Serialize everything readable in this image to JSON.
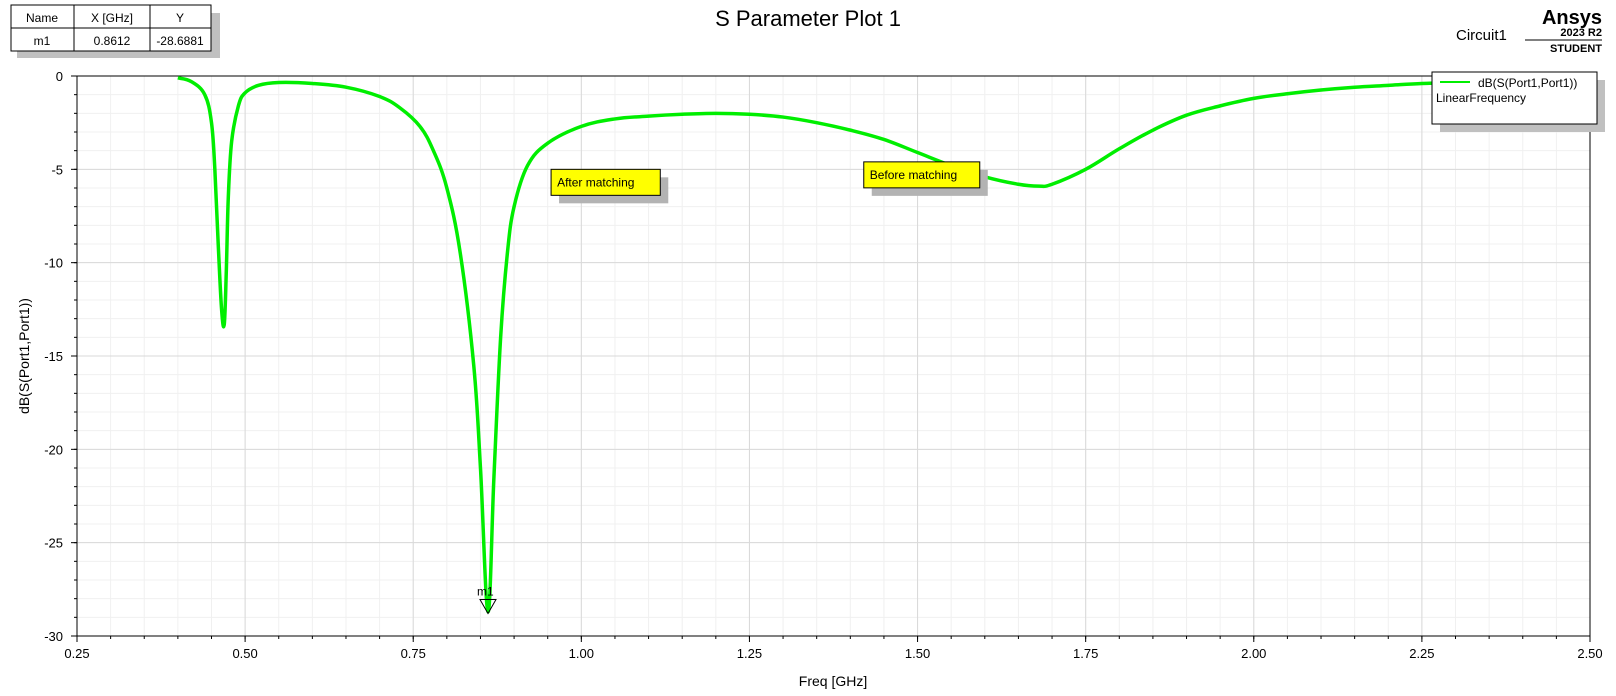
{
  "title": "S Parameter Plot 1",
  "circuit_label": "Circuit1",
  "brand": {
    "name": "Ansys",
    "version": "2023 R2",
    "edition": "STUDENT"
  },
  "marker_table": {
    "headers": [
      "Name",
      "X [GHz]",
      "Y"
    ],
    "rows": [
      [
        "m1",
        "0.8612",
        "-28.6881"
      ]
    ]
  },
  "legend": {
    "series_label": "dB(S(Port1,Port1))",
    "sweep_label": "LinearFrequency"
  },
  "annotations": {
    "after": "After matching",
    "before": "Before matching",
    "marker_label": "m1"
  },
  "colors": {
    "trace": "#00ee00",
    "note_bg": "#ffff00",
    "grid": "#d9d9d9",
    "minor_grid": "#f0f0f0"
  },
  "chart_data": {
    "type": "line",
    "xlabel": "Freq [GHz]",
    "ylabel": "dB(S(Port1,Port1))",
    "xlim": [
      0.25,
      2.5
    ],
    "ylim": [
      -30,
      0
    ],
    "x_ticks": [
      0.25,
      0.5,
      0.75,
      1.0,
      1.25,
      1.5,
      1.75,
      2.0,
      2.25,
      2.5
    ],
    "x_tick_labels": [
      "0.25",
      "0.50",
      "0.75",
      "1.00",
      "1.25",
      "1.50",
      "1.75",
      "2.00",
      "2.25",
      "2.50"
    ],
    "y_ticks": [
      0,
      -5,
      -10,
      -15,
      -20,
      -25,
      -30
    ],
    "y_tick_labels": [
      "0",
      "-5",
      "-10",
      "-15",
      "-20",
      "-25",
      "-30"
    ],
    "grid": true,
    "legend_position": "top-right",
    "series": [
      {
        "name": "dB(S(Port1,Port1))",
        "x": [
          0.4,
          0.42,
          0.44,
          0.45,
          0.455,
          0.46,
          0.465,
          0.469,
          0.472,
          0.475,
          0.48,
          0.49,
          0.5,
          0.52,
          0.55,
          0.6,
          0.65,
          0.7,
          0.73,
          0.76,
          0.78,
          0.8,
          0.82,
          0.84,
          0.85,
          0.8612,
          0.87,
          0.88,
          0.89,
          0.9,
          0.92,
          0.95,
          1.0,
          1.05,
          1.1,
          1.15,
          1.2,
          1.25,
          1.3,
          1.35,
          1.4,
          1.45,
          1.5,
          1.55,
          1.6,
          1.65,
          1.68,
          1.7,
          1.75,
          1.8,
          1.85,
          1.9,
          1.95,
          2.0,
          2.05,
          2.1,
          2.15,
          2.2,
          2.25,
          2.3
        ],
        "y": [
          -0.1,
          -0.3,
          -1.0,
          -2.5,
          -5.0,
          -9.0,
          -12.5,
          -13.3,
          -10.5,
          -6.5,
          -3.5,
          -1.6,
          -0.9,
          -0.5,
          -0.35,
          -0.4,
          -0.6,
          -1.1,
          -1.7,
          -2.7,
          -4.0,
          -6.0,
          -9.5,
          -15.5,
          -21.0,
          -28.7,
          -21.5,
          -14.0,
          -9.5,
          -7.0,
          -4.8,
          -3.6,
          -2.7,
          -2.3,
          -2.15,
          -2.05,
          -2.0,
          -2.05,
          -2.2,
          -2.5,
          -2.9,
          -3.4,
          -4.1,
          -4.8,
          -5.4,
          -5.8,
          -5.9,
          -5.8,
          -5.0,
          -3.9,
          -2.9,
          -2.1,
          -1.6,
          -1.2,
          -0.95,
          -0.75,
          -0.6,
          -0.5,
          -0.4,
          -0.35
        ]
      }
    ],
    "markers": [
      {
        "name": "m1",
        "x": 0.8612,
        "y": -28.6881
      }
    ],
    "notes": [
      {
        "text": "After matching",
        "x": 0.955,
        "y": -5.0
      },
      {
        "text": "Before matching",
        "x": 1.42,
        "y": -4.6
      }
    ]
  }
}
